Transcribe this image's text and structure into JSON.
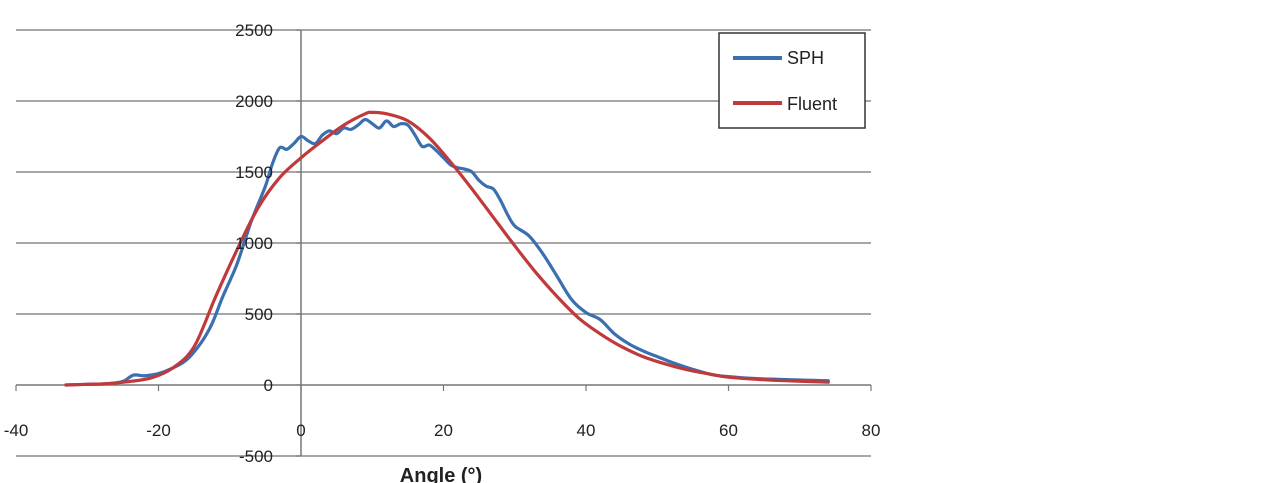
{
  "chart_data": {
    "type": "line",
    "xlabel": "Angle (°)",
    "ylabel": "",
    "xlim": [
      -40,
      80
    ],
    "ylim": [
      -500,
      2500
    ],
    "xticks": [
      "-40",
      "-20",
      "0",
      "20",
      "40",
      "60",
      "80"
    ],
    "yticks": [
      "-500",
      "0",
      "500",
      "1000",
      "1500",
      "2000",
      "2500"
    ],
    "grid": "horizontal",
    "legend_position": "top-right",
    "series": [
      {
        "name": "SPH",
        "color": "#3a6fb0",
        "x": [
          -33,
          -30,
          -27,
          -25,
          -23.5,
          -22,
          -20,
          -18,
          -16,
          -14,
          -12.5,
          -11,
          -9,
          -7,
          -5,
          -4,
          -3,
          -2,
          -1,
          0,
          1,
          2,
          3,
          4,
          5,
          6,
          7,
          8,
          9,
          10,
          11,
          12,
          13,
          14,
          15,
          16,
          17,
          18,
          19,
          20,
          21,
          22,
          23,
          24,
          25,
          26,
          27,
          28,
          29,
          30,
          32,
          34,
          36,
          38,
          40,
          42,
          44,
          46,
          48,
          50,
          52,
          55,
          58,
          61,
          64,
          67,
          70,
          74
        ],
        "y": [
          0,
          5,
          10,
          25,
          70,
          65,
          80,
          120,
          180,
          300,
          430,
          620,
          850,
          1150,
          1400,
          1560,
          1670,
          1660,
          1700,
          1750,
          1720,
          1700,
          1760,
          1790,
          1770,
          1810,
          1800,
          1830,
          1870,
          1840,
          1810,
          1860,
          1820,
          1840,
          1830,
          1760,
          1680,
          1690,
          1650,
          1600,
          1550,
          1530,
          1520,
          1500,
          1440,
          1400,
          1380,
          1300,
          1200,
          1120,
          1050,
          920,
          760,
          600,
          510,
          460,
          360,
          290,
          240,
          200,
          160,
          110,
          70,
          55,
          45,
          40,
          35,
          30
        ]
      },
      {
        "name": "Fluent",
        "color": "#c0393b",
        "x": [
          -33,
          -30,
          -27,
          -24,
          -21,
          -18,
          -15,
          -12,
          -9,
          -6,
          -3,
          0,
          3,
          6,
          9,
          10,
          12,
          15,
          18,
          21,
          24,
          27,
          30,
          33,
          36,
          39,
          42,
          45,
          48,
          51,
          54,
          57,
          60,
          64,
          68,
          74
        ],
        "y": [
          0,
          5,
          10,
          25,
          50,
          120,
          270,
          620,
          950,
          1250,
          1460,
          1600,
          1720,
          1830,
          1910,
          1920,
          1910,
          1860,
          1740,
          1570,
          1380,
          1180,
          980,
          790,
          620,
          470,
          360,
          270,
          200,
          150,
          110,
          80,
          55,
          40,
          30,
          20
        ]
      }
    ]
  }
}
